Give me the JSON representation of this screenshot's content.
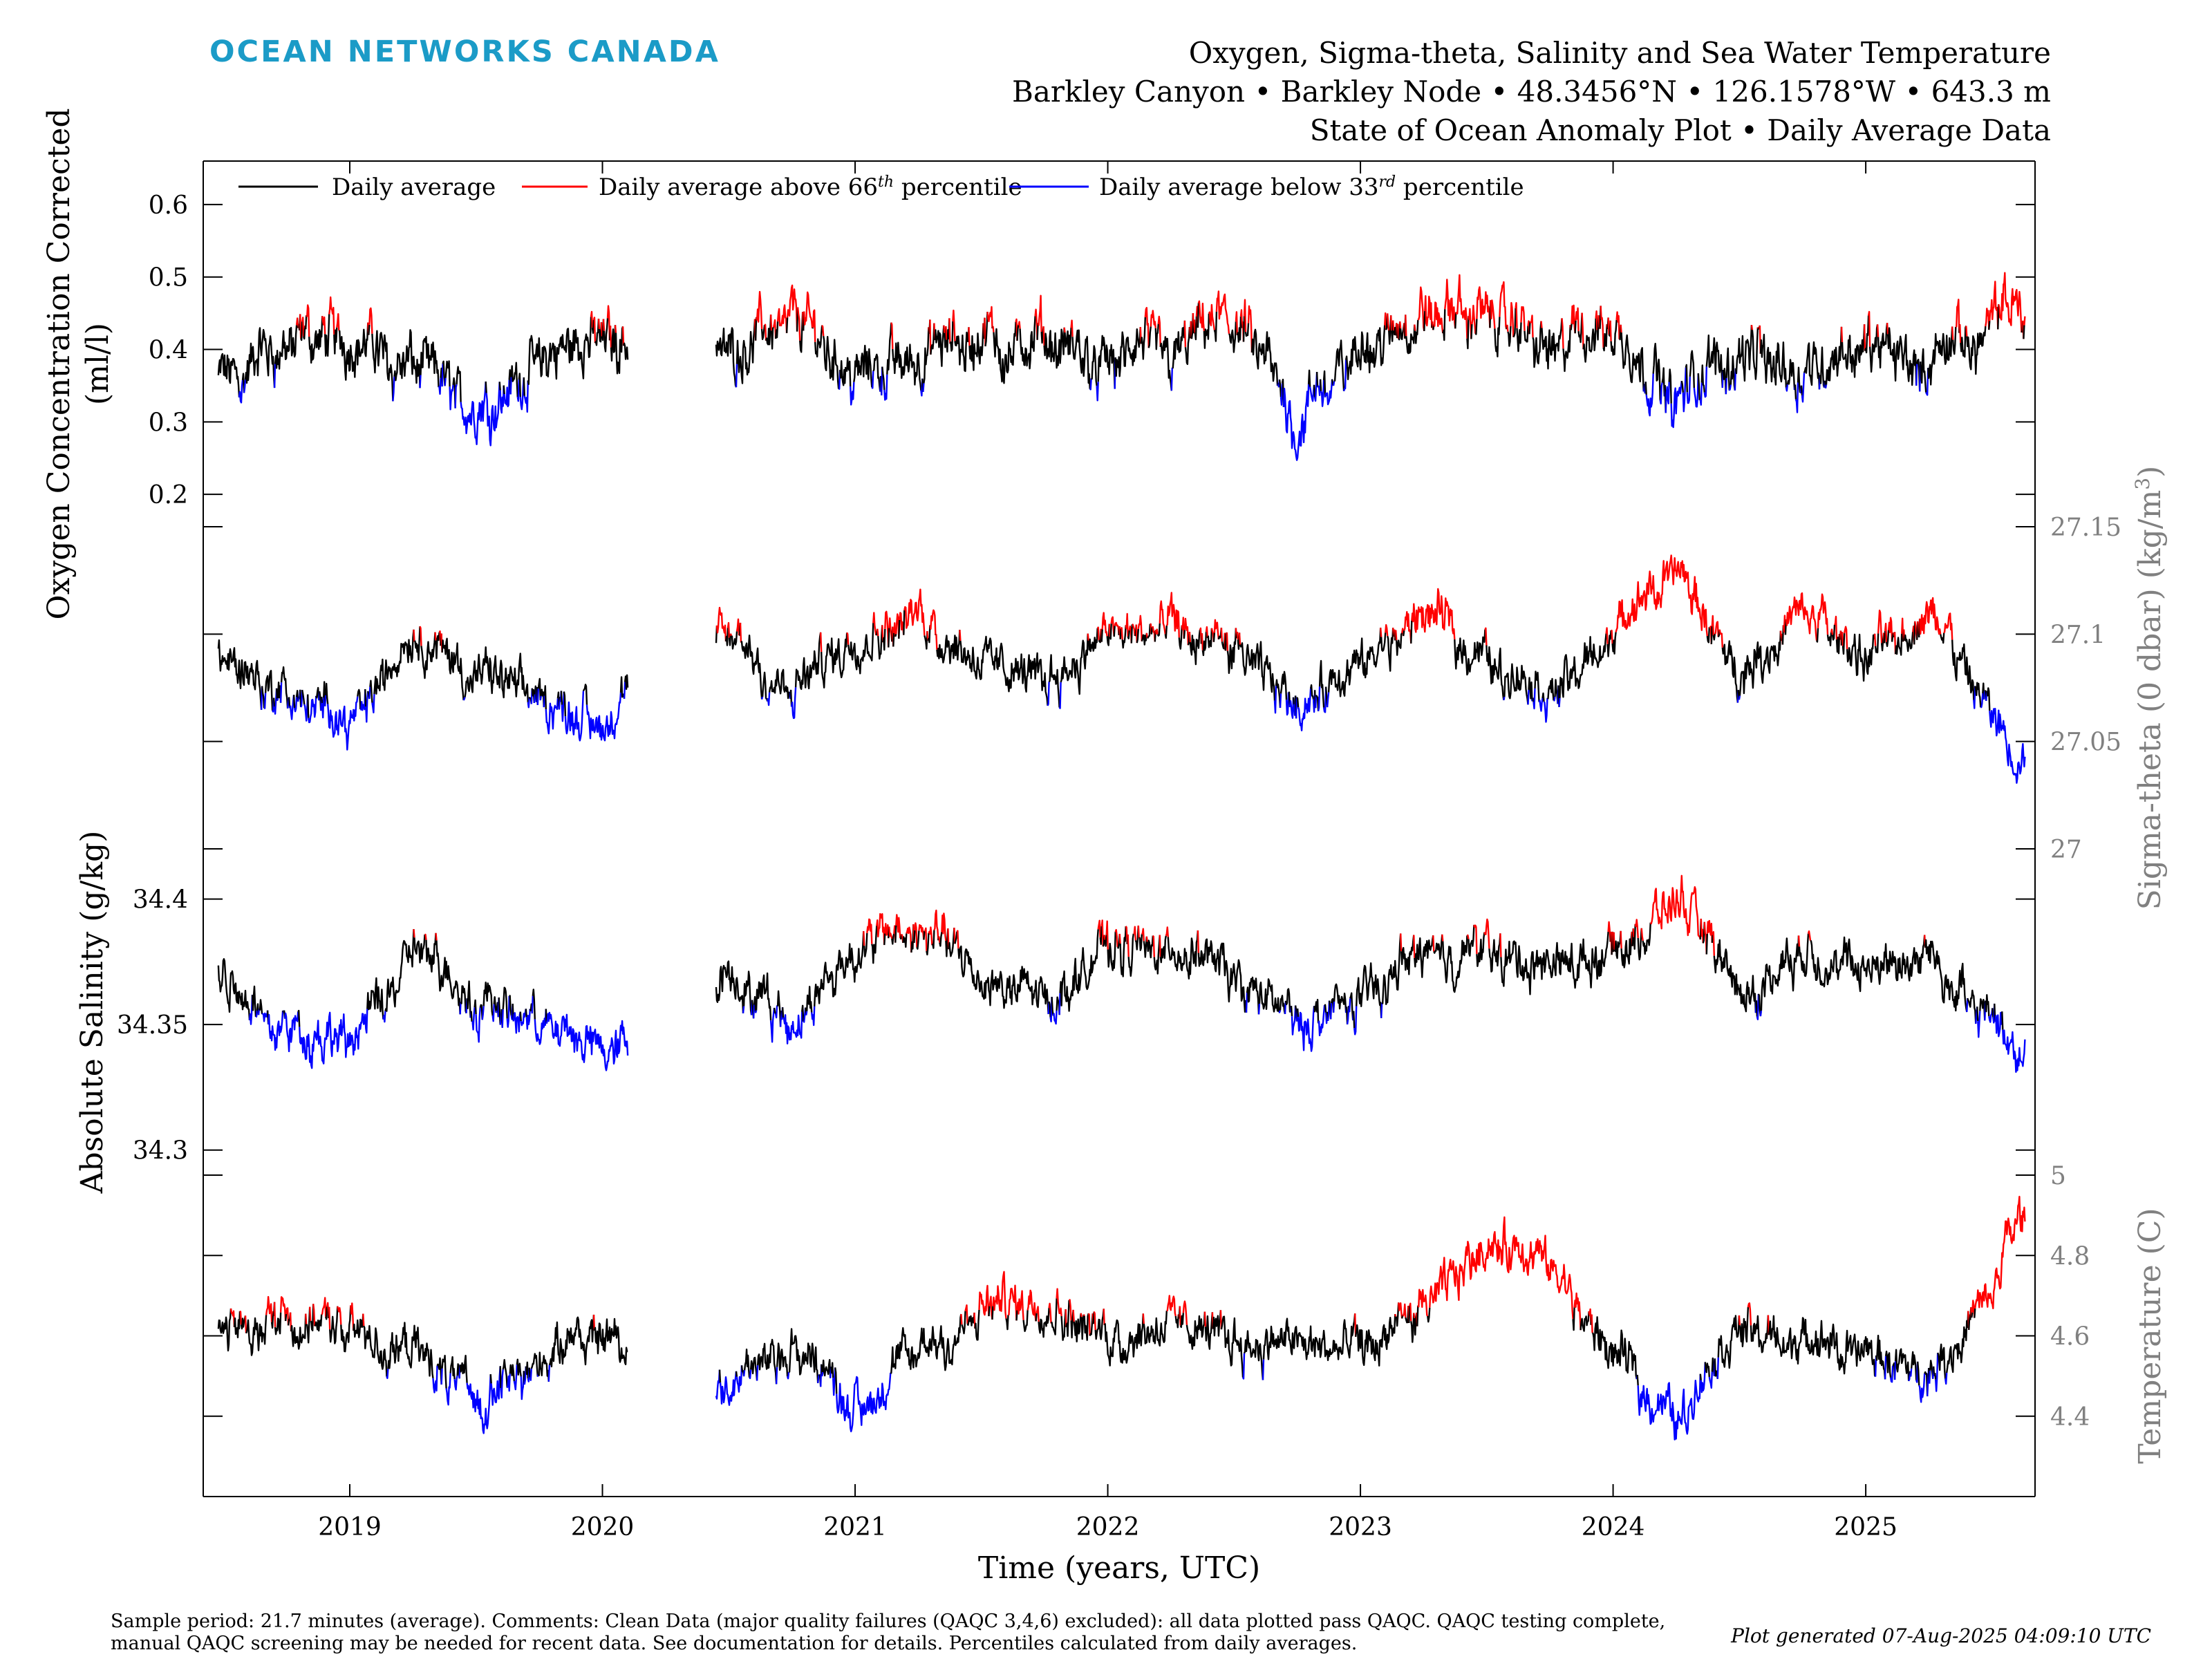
{
  "brand": "OCEAN NETWORKS CANADA",
  "title": {
    "line1": "Oxygen, Sigma-theta, Salinity and Sea Water Temperature",
    "line2": "Barkley Canyon • Barkley Node • 48.3456°N • 126.1578°W • 643.3 m",
    "line3": "State of Ocean Anomaly Plot • Daily Average Data"
  },
  "legend": {
    "avg": "Daily average",
    "above_pre": "Daily average above 66",
    "above_sup": "th",
    "above_post": " percentile",
    "below_pre": "Daily average below 33",
    "below_sup": "rd",
    "below_post": " percentile"
  },
  "footnote": {
    "line1": "Sample period: 21.7 minutes (average). Comments: Clean Data (major quality failures (QAQC 3,4,6) excluded): all data plotted pass QAQC. QAQC testing complete,",
    "line2": "manual QAQC screening may be needed for recent data. See documentation for details. Percentiles calculated from daily averages."
  },
  "generated": "Plot generated 07-Aug-2025 04:09:10 UTC",
  "colors": {
    "avg": "#000000",
    "above": "#ff0000",
    "below": "#0000ff",
    "right_axis": "#808080",
    "brand": "#1b9bc7"
  },
  "chart_data": [
    {
      "type": "line",
      "panel": "oxygen",
      "ylabel": "Oxygen Concentration Corrected (ml/l)",
      "ylabel_lines": [
        "Oxygen Concentration Corrected",
        "(ml/l)"
      ],
      "axis_side": "left",
      "yticks": [
        0.2,
        0.3,
        0.4,
        0.5,
        0.6
      ],
      "ylim": [
        0.1,
        0.66
      ],
      "thresholds": {
        "low": 0.35,
        "high": 0.43
      },
      "xlim": [
        2018.42,
        2025.67
      ],
      "x": [
        2018.5,
        2018.75,
        2019.0,
        2019.25,
        2019.5,
        2019.75,
        2020.0,
        2020.5,
        2020.75,
        2021.0,
        2021.25,
        2021.5,
        2021.75,
        2022.0,
        2022.25,
        2022.5,
        2022.75,
        2023.0,
        2023.25,
        2023.5,
        2023.75,
        2024.0,
        2024.25,
        2024.5,
        2024.75,
        2025.0,
        2025.25,
        2025.5,
        2025.6
      ],
      "series": [
        {
          "values": [
            0.36,
            0.4,
            0.42,
            0.38,
            0.32,
            0.38,
            0.42,
            0.4,
            0.45,
            0.37,
            0.39,
            0.41,
            0.4,
            0.38,
            0.4,
            0.44,
            0.3,
            0.4,
            0.44,
            0.45,
            0.4,
            0.43,
            0.33,
            0.4,
            0.38,
            0.4,
            0.38,
            0.43,
            0.46
          ]
        }
      ]
    },
    {
      "type": "line",
      "panel": "sigma-theta",
      "ylabel": "Sigma-theta (0 dbar) (kg/m³)",
      "ylabel_lines": [
        "Sigma-theta (0 dbar) (kg/m",
        "3",
        ")"
      ],
      "axis_side": "right",
      "yticks": [
        27,
        27.05,
        27.1,
        27.15
      ],
      "ylim": [
        27.0,
        27.15
      ],
      "thresholds": {
        "low": 27.07,
        "high": 27.1
      },
      "xlim": [
        2018.42,
        2025.67
      ],
      "x": [
        2018.5,
        2018.75,
        2019.0,
        2019.25,
        2019.5,
        2019.75,
        2020.0,
        2020.5,
        2020.75,
        2021.0,
        2021.25,
        2021.5,
        2021.75,
        2022.0,
        2022.25,
        2022.5,
        2022.75,
        2023.0,
        2023.25,
        2023.5,
        2023.75,
        2024.0,
        2024.25,
        2024.5,
        2024.75,
        2025.0,
        2025.25,
        2025.5,
        2025.6
      ],
      "series": [
        {
          "values": [
            27.09,
            27.07,
            27.06,
            27.1,
            27.08,
            27.07,
            27.06,
            27.1,
            27.07,
            27.1,
            27.11,
            27.09,
            27.08,
            27.1,
            27.1,
            27.09,
            27.07,
            27.08,
            27.11,
            27.09,
            27.07,
            27.1,
            27.13,
            27.08,
            27.11,
            27.09,
            27.11,
            27.06,
            27.04
          ]
        }
      ]
    },
    {
      "type": "line",
      "panel": "salinity",
      "ylabel": "Absolute Salinity (g/kg)",
      "ylabel_lines": [
        "Absolute Salinity (g/kg)"
      ],
      "axis_side": "left",
      "yticks": [
        34.3,
        34.35,
        34.4
      ],
      "ylim": [
        34.29,
        34.42
      ],
      "thresholds": {
        "low": 34.355,
        "high": 34.385
      },
      "xlim": [
        2018.42,
        2025.67
      ],
      "x": [
        2018.5,
        2018.75,
        2019.0,
        2019.25,
        2019.5,
        2019.75,
        2020.0,
        2020.5,
        2020.75,
        2021.0,
        2021.25,
        2021.5,
        2021.75,
        2022.0,
        2022.25,
        2022.5,
        2022.75,
        2023.0,
        2023.25,
        2023.5,
        2023.75,
        2024.0,
        2024.25,
        2024.5,
        2024.75,
        2025.0,
        2025.25,
        2025.5,
        2025.6
      ],
      "series": [
        {
          "values": [
            34.37,
            34.35,
            34.34,
            34.38,
            34.36,
            34.35,
            34.34,
            34.37,
            34.35,
            34.38,
            34.39,
            34.37,
            34.36,
            34.38,
            34.38,
            34.37,
            34.35,
            34.36,
            34.38,
            34.38,
            34.37,
            34.38,
            34.4,
            34.36,
            34.38,
            34.37,
            34.38,
            34.35,
            34.34
          ]
        }
      ]
    },
    {
      "type": "line",
      "panel": "temperature",
      "ylabel": "Temperature (C)",
      "ylabel_lines": [
        "Temperature (C)"
      ],
      "axis_side": "right",
      "yticks": [
        4.4,
        4.6,
        4.8,
        5
      ],
      "ylim": [
        4.2,
        5.0
      ],
      "thresholds": {
        "low": 4.5,
        "high": 4.65
      },
      "xlim": [
        2018.42,
        2025.67
      ],
      "x": [
        2018.5,
        2018.75,
        2019.0,
        2019.25,
        2019.5,
        2019.75,
        2020.0,
        2020.5,
        2020.75,
        2021.0,
        2021.25,
        2021.5,
        2021.75,
        2022.0,
        2022.25,
        2022.5,
        2022.75,
        2023.0,
        2023.25,
        2023.5,
        2023.75,
        2024.0,
        2024.25,
        2024.5,
        2024.75,
        2025.0,
        2025.25,
        2025.5,
        2025.6
      ],
      "series": [
        {
          "values": [
            4.6,
            4.65,
            4.62,
            4.55,
            4.45,
            4.55,
            4.62,
            4.48,
            4.58,
            4.42,
            4.55,
            4.65,
            4.7,
            4.6,
            4.65,
            4.6,
            4.58,
            4.55,
            4.65,
            4.85,
            4.75,
            4.55,
            4.4,
            4.62,
            4.58,
            4.55,
            4.5,
            4.7,
            4.9
          ]
        }
      ]
    }
  ],
  "xaxis": {
    "label": "Time (years, UTC)",
    "ticks": [
      2019,
      2020,
      2021,
      2022,
      2023,
      2024,
      2025
    ]
  }
}
